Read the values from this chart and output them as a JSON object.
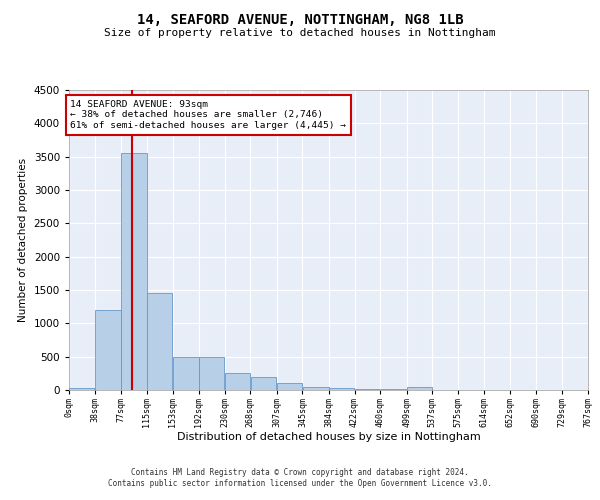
{
  "title1": "14, SEAFORD AVENUE, NOTTINGHAM, NG8 1LB",
  "title2": "Size of property relative to detached houses in Nottingham",
  "xlabel": "Distribution of detached houses by size in Nottingham",
  "ylabel": "Number of detached properties",
  "bin_edges": [
    0,
    38,
    77,
    115,
    153,
    192,
    230,
    268,
    307,
    345,
    384,
    422,
    460,
    499,
    537,
    575,
    614,
    652,
    690,
    729,
    767
  ],
  "bin_labels": [
    "0sqm",
    "38sqm",
    "77sqm",
    "115sqm",
    "153sqm",
    "192sqm",
    "230sqm",
    "268sqm",
    "307sqm",
    "345sqm",
    "384sqm",
    "422sqm",
    "460sqm",
    "499sqm",
    "537sqm",
    "575sqm",
    "614sqm",
    "652sqm",
    "690sqm",
    "729sqm",
    "767sqm"
  ],
  "bar_heights": [
    30,
    1200,
    3550,
    1450,
    500,
    490,
    250,
    195,
    100,
    50,
    30,
    15,
    10,
    40,
    5,
    3,
    2,
    0,
    0,
    0
  ],
  "bar_color": "#b8cfe8",
  "bar_edge_color": "#6699cc",
  "bg_color": "#e8eef8",
  "grid_color": "#ffffff",
  "property_line_x": 93,
  "property_line_color": "#cc0000",
  "annotation_text": "14 SEAFORD AVENUE: 93sqm\n← 38% of detached houses are smaller (2,746)\n61% of semi-detached houses are larger (4,445) →",
  "annotation_box_color": "#cc0000",
  "ylim": [
    0,
    4500
  ],
  "yticks": [
    0,
    500,
    1000,
    1500,
    2000,
    2500,
    3000,
    3500,
    4000,
    4500
  ],
  "footer1": "Contains HM Land Registry data © Crown copyright and database right 2024.",
  "footer2": "Contains public sector information licensed under the Open Government Licence v3.0.",
  "title1_fontsize": 10,
  "title2_fontsize": 8,
  "ylabel_fontsize": 7.5,
  "xlabel_fontsize": 8
}
